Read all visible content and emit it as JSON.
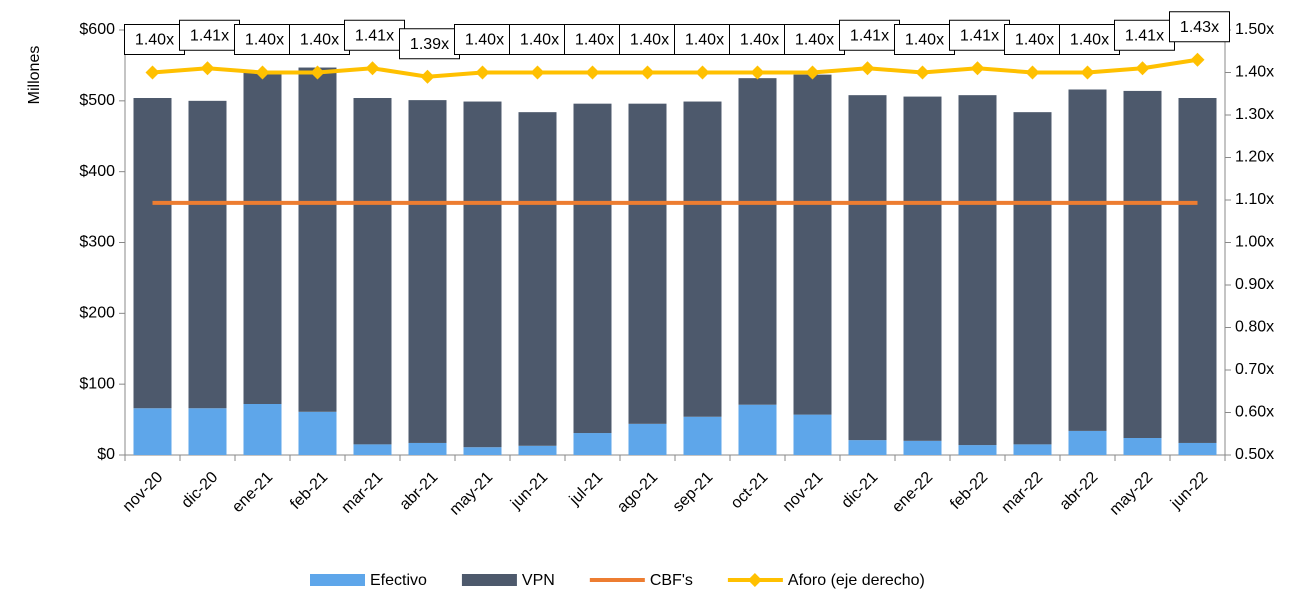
{
  "chart_data": {
    "type": "bar",
    "stacked": true,
    "y_label": "Millones",
    "categories": [
      "nov-20",
      "dic-20",
      "ene-21",
      "feb-21",
      "mar-21",
      "abr-21",
      "may-21",
      "jun-21",
      "jul-21",
      "ago-21",
      "sep-21",
      "oct-21",
      "nov-21",
      "dic-21",
      "ene-22",
      "feb-22",
      "mar-22",
      "abr-22",
      "may-22",
      "jun-22"
    ],
    "series": [
      {
        "name": "Efectivo",
        "type": "bar",
        "color": "#5ea6ea",
        "values": [
          66,
          66,
          72,
          61,
          15,
          17,
          11,
          13,
          31,
          44,
          54,
          71,
          57,
          21,
          20,
          14,
          15,
          34,
          24,
          17
        ]
      },
      {
        "name": "VPN",
        "type": "bar",
        "color": "#4d596c",
        "values": [
          438,
          434,
          469,
          486,
          489,
          484,
          488,
          471,
          465,
          452,
          445,
          461,
          480,
          487,
          486,
          494,
          469,
          482,
          490,
          487
        ]
      },
      {
        "name": "CBF's",
        "type": "line",
        "color": "#ed7d31",
        "values": [
          356,
          356,
          356,
          356,
          356,
          356,
          356,
          356,
          356,
          356,
          356,
          356,
          356,
          356,
          356,
          356,
          356,
          356,
          356,
          356
        ]
      },
      {
        "name": "Aforo (eje derecho)",
        "type": "line",
        "axis": "y2",
        "marker": "diamond",
        "color": "#ffc000",
        "values": [
          1.4,
          1.41,
          1.4,
          1.4,
          1.41,
          1.39,
          1.4,
          1.4,
          1.4,
          1.4,
          1.4,
          1.4,
          1.4,
          1.41,
          1.4,
          1.41,
          1.4,
          1.4,
          1.41,
          1.43
        ],
        "value_labels": [
          "1.40x",
          "1.41x",
          "1.40x",
          "1.40x",
          "1.41x",
          "1.39x",
          "1.40x",
          "1.40x",
          "1.40x",
          "1.40x",
          "1.40x",
          "1.40x",
          "1.40x",
          "1.41x",
          "1.40x",
          "1.41x",
          "1.40x",
          "1.40x",
          "1.41x",
          "1.43x"
        ]
      }
    ],
    "ylim": [
      0,
      600
    ],
    "yticks": [
      {
        "value": 0,
        "label": "$0"
      },
      {
        "value": 100,
        "label": "$100"
      },
      {
        "value": 200,
        "label": "$200"
      },
      {
        "value": 300,
        "label": "$300"
      },
      {
        "value": 400,
        "label": "$400"
      },
      {
        "value": 500,
        "label": "$500"
      },
      {
        "value": 600,
        "label": "$600"
      }
    ],
    "y2lim": [
      0.5,
      1.5
    ],
    "y2ticks": [
      {
        "value": 0.5,
        "label": "0.50x"
      },
      {
        "value": 0.6,
        "label": "0.60x"
      },
      {
        "value": 0.7,
        "label": "0.70x"
      },
      {
        "value": 0.8,
        "label": "0.80x"
      },
      {
        "value": 0.9,
        "label": "0.90x"
      },
      {
        "value": 1.0,
        "label": "1.00x"
      },
      {
        "value": 1.1,
        "label": "1.10x"
      },
      {
        "value": 1.2,
        "label": "1.20x"
      },
      {
        "value": 1.3,
        "label": "1.30x"
      },
      {
        "value": 1.4,
        "label": "1.40x"
      },
      {
        "value": 1.5,
        "label": "1.50x"
      }
    ],
    "legend": "bottom"
  }
}
